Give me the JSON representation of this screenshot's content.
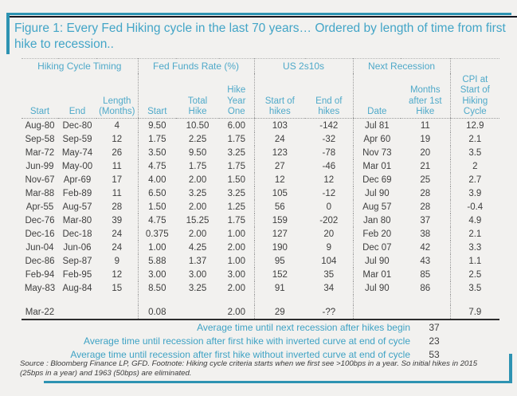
{
  "title": "Figure 1: Every Fed Hiking cycle in the last 70 years… Ordered by length of time from first hike to recession..",
  "colors": {
    "accent_teal": "#2E93B2",
    "title_text": "#43A5C7",
    "header_text": "#4FA9C9",
    "dark_line": "#16161F",
    "body_text": "#3E3E3E"
  },
  "table": {
    "groups": [
      {
        "label": "Hiking Cycle Timing",
        "span": 3
      },
      {
        "label": "Fed Funds Rate (%)",
        "span": 3
      },
      {
        "label": "US 2s10s",
        "span": 2
      },
      {
        "label": "Next Recession",
        "span": 2
      },
      {
        "label": "",
        "span": 1
      }
    ],
    "columns": [
      "Start",
      "End",
      "Length\n(Months)",
      "Start",
      "Total\nHike",
      "Hike\nYear\nOne",
      "Start of\nhikes",
      "End of\nhikes",
      "Date",
      "Months\nafter 1st\nHike",
      "CPI at\nStart of\nHiking\nCycle"
    ],
    "rows": [
      [
        "Aug-80",
        "Dec-80",
        "4",
        "9.50",
        "10.50",
        "6.00",
        "103",
        "-142",
        "Jul 81",
        "11",
        "12.9"
      ],
      [
        "Sep-58",
        "Sep-59",
        "12",
        "1.75",
        "2.25",
        "1.75",
        "24",
        "-32",
        "Apr 60",
        "19",
        "2.1"
      ],
      [
        "Mar-72",
        "May-74",
        "26",
        "3.50",
        "9.50",
        "3.25",
        "123",
        "-78",
        "Nov 73",
        "20",
        "3.5"
      ],
      [
        "Jun-99",
        "May-00",
        "11",
        "4.75",
        "1.75",
        "1.75",
        "27",
        "-46",
        "Mar 01",
        "21",
        "2"
      ],
      [
        "Nov-67",
        "Apr-69",
        "17",
        "4.00",
        "2.00",
        "1.50",
        "12",
        "12",
        "Dec 69",
        "25",
        "2.7"
      ],
      [
        "Mar-88",
        "Feb-89",
        "11",
        "6.50",
        "3.25",
        "3.25",
        "105",
        "-12",
        "Jul 90",
        "28",
        "3.9"
      ],
      [
        "Apr-55",
        "Aug-57",
        "28",
        "1.50",
        "2.00",
        "1.25",
        "56",
        "0",
        "Aug 57",
        "28",
        "-0.4"
      ],
      [
        "Dec-76",
        "Mar-80",
        "39",
        "4.75",
        "15.25",
        "1.75",
        "159",
        "-202",
        "Jan 80",
        "37",
        "4.9"
      ],
      [
        "Dec-16",
        "Dec-18",
        "24",
        "0.375",
        "2.00",
        "1.00",
        "127",
        "20",
        "Feb 20",
        "38",
        "2.1"
      ],
      [
        "Jun-04",
        "Jun-06",
        "24",
        "1.00",
        "4.25",
        "2.00",
        "190",
        "9",
        "Dec 07",
        "42",
        "3.3"
      ],
      [
        "Dec-86",
        "Sep-87",
        "9",
        "5.88",
        "1.37",
        "1.00",
        "95",
        "104",
        "Jul 90",
        "43",
        "1.1"
      ],
      [
        "Feb-94",
        "Feb-95",
        "12",
        "3.00",
        "3.00",
        "3.00",
        "152",
        "35",
        "Mar 01",
        "85",
        "2.5"
      ],
      [
        "May-83",
        "Aug-84",
        "15",
        "8.50",
        "3.25",
        "2.00",
        "91",
        "34",
        "Jul 90",
        "86",
        "3.5"
      ]
    ],
    "current_row": [
      "Mar-22",
      "",
      "",
      "0.08",
      "",
      "2.00",
      "29",
      "-??",
      "",
      "",
      "7.9"
    ]
  },
  "summary": [
    {
      "label": "Average time until next recession after hikes begin",
      "value": "37"
    },
    {
      "label": "Average time until recession after first hike with inverted curve at end of cycle",
      "value": "23"
    },
    {
      "label": "Average time until recession after first hike without inverted curve at end of cycle",
      "value": "53"
    }
  ],
  "source_note": "Source : Bloomberg Finance LP, GFD. Footnote: Hiking cycle criteria starts when we first see >100bps in a year. So initial hikes in 2015 (25bps in a year) and 1963 (50bps) are eliminated."
}
